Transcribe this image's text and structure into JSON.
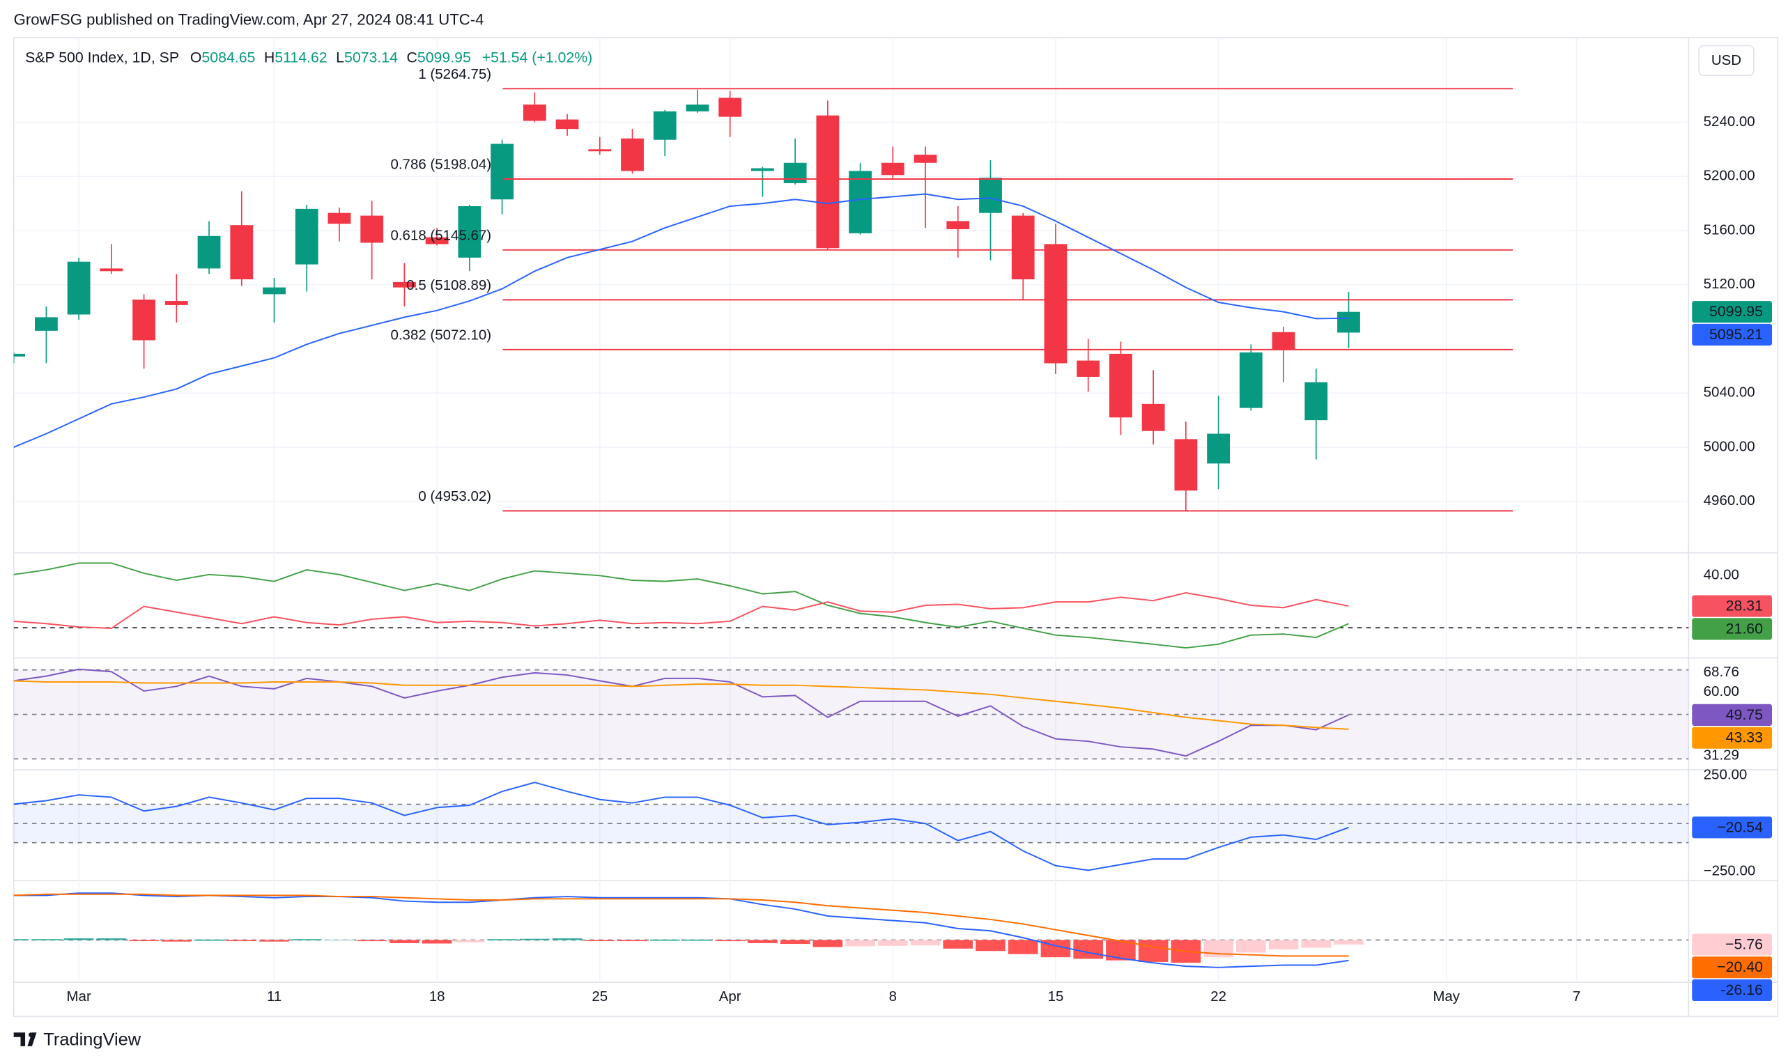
{
  "header": "GrowFSG published on TradingView.com, Apr 27, 2024 08:41 UTC-4",
  "footer": "TradingView",
  "currency": "USD",
  "chart_data": [
    {
      "type": "candlestick",
      "title": "S&P 500 Index, 1D, SP",
      "ohlc_prefixes": [
        "O",
        "H",
        "L",
        "C"
      ],
      "change": "+51.54 (+1.02%)",
      "x": [
        0,
        1,
        2,
        3,
        4,
        5,
        6,
        7,
        8,
        9,
        10,
        11,
        12,
        13,
        14,
        15,
        16,
        17,
        18,
        19,
        20,
        21,
        22,
        23,
        24,
        25,
        26,
        27,
        28,
        29,
        30,
        31,
        32,
        33,
        34,
        35,
        36,
        37,
        38,
        39,
        40,
        41
      ],
      "open": [
        5067,
        5086,
        5098,
        5132,
        5109,
        5108,
        5132,
        5164,
        5113,
        5135,
        5173,
        5171,
        5122,
        5155,
        5140,
        5183,
        5253,
        5242,
        5220,
        5228,
        5227,
        5248,
        5258,
        5204,
        5195,
        5245,
        5158,
        5210,
        5216,
        5167,
        5173,
        5171,
        5150,
        5064,
        5069,
        5032,
        5006,
        4988,
        5029,
        5085,
        5020,
        5084.65
      ],
      "high": [
        5070,
        5104,
        5140,
        5150,
        5113,
        5128,
        5167,
        5189,
        5125,
        5179,
        5177,
        5182,
        5136,
        5162,
        5179,
        5227,
        5262,
        5246,
        5229,
        5235,
        5249,
        5264,
        5263,
        5207,
        5228,
        5256,
        5210,
        5222,
        5222,
        5178,
        5212,
        5173,
        5165,
        5080,
        5078,
        5057,
        5019,
        5038,
        5076,
        5089,
        5058,
        5114.62
      ],
      "low": [
        5062,
        5062,
        5094,
        5128,
        5058,
        5092,
        5128,
        5119,
        5092,
        5115,
        5152,
        5124,
        5104,
        5149,
        5130,
        5172,
        5240,
        5230,
        5216,
        5202,
        5215,
        5247,
        5229,
        5185,
        5194,
        5146,
        5157,
        5198,
        5162,
        5140,
        5138,
        5109,
        5054,
        5041,
        5009,
        5002,
        4953,
        4969,
        5027,
        5048,
        4991,
        5073.14
      ],
      "close": [
        5069,
        5096,
        5137,
        5130,
        5079,
        5105,
        5156,
        5124,
        5118,
        5176,
        5165,
        5151,
        5118,
        5150,
        5178,
        5224,
        5241,
        5235,
        5218.5,
        5204,
        5248,
        5253,
        5244,
        5206,
        5210,
        5147,
        5204,
        5201,
        5210,
        5161,
        5199,
        5124,
        5062,
        5052,
        5022,
        5012,
        4968,
        5010,
        5070,
        5072,
        5048,
        5099.95
      ],
      "up_color": "#089981",
      "down_color": "#f23645",
      "series": [
        {
          "color": "#2962ff",
          "values": [
            5000,
            5010,
            5021,
            5032,
            5037,
            5043,
            5054,
            5060,
            5066,
            5076,
            5084,
            5090,
            5096,
            5101,
            5108,
            5117,
            5130,
            5140,
            5146,
            5152,
            5162,
            5170,
            5178,
            5180,
            5183,
            5180,
            5183,
            5185,
            5187,
            5183,
            5184,
            5178,
            5167,
            5155,
            5143,
            5131,
            5118,
            5107,
            5103,
            5100,
            5095,
            5095.21
          ]
        }
      ],
      "levels": [
        {
          "value": 5264.75,
          "label": "1 (5264.75)"
        },
        {
          "value": 5198.04,
          "label": "0.786 (5198.04)"
        },
        {
          "value": 5145.67,
          "label": "0.618 (5145.67)"
        },
        {
          "value": 5108.89,
          "label": "0.5 (5108.89)"
        },
        {
          "value": 5072.1,
          "label": "0.382 (5072.10)"
        },
        {
          "value": 4953.02,
          "label": "0 (4953.02)"
        }
      ],
      "level_color": "#f23645",
      "level_x": [
        15.02,
        46.04
      ],
      "xlim": [
        0,
        51.44
      ],
      "xticks": [
        {
          "value": 2,
          "label": "Mar"
        },
        {
          "value": 8,
          "label": "11"
        },
        {
          "value": 13,
          "label": "18"
        },
        {
          "value": 18,
          "label": "25"
        },
        {
          "value": 22,
          "label": "Apr"
        },
        {
          "value": 27,
          "label": "8"
        },
        {
          "value": 32,
          "label": "15"
        },
        {
          "value": 37,
          "label": "22"
        },
        {
          "value": 44,
          "label": "May"
        },
        {
          "value": 48,
          "label": "7"
        }
      ],
      "ylim": [
        4922.9,
        5302.4
      ],
      "yticks": [
        {
          "value": 5240,
          "label": "5240.00"
        },
        {
          "value": 5200,
          "label": "5200.00"
        },
        {
          "value": 5160,
          "label": "5160.00"
        },
        {
          "value": 5120,
          "label": "5120.00"
        },
        {
          "value": 5040,
          "label": "5040.00"
        },
        {
          "value": 5000,
          "label": "5000.00"
        },
        {
          "value": 4960,
          "label": "4960.00"
        }
      ],
      "grid": true
    },
    {
      "type": "line",
      "series": [
        {
          "color": "#43a047",
          "values": [
            40.4,
            42.2,
            44.8,
            44.8,
            40.9,
            38.2,
            40.4,
            39.6,
            37.8,
            42.2,
            40.4,
            37.4,
            34.3,
            36.9,
            34.3,
            38.7,
            41.8,
            40.9,
            40.0,
            38.2,
            37.8,
            38.7,
            36.1,
            33.0,
            33.9,
            28.6,
            25.5,
            24.2,
            22.0,
            20.2,
            22.5,
            19.8,
            17.2,
            16.3,
            15.0,
            13.7,
            12.3,
            13.7,
            17.2,
            17.6,
            16.3,
            21.6
          ],
          "last_label": "21.60"
        },
        {
          "color": "#f7525f",
          "values": [
            22.5,
            21.6,
            20.3,
            19.8,
            28.2,
            26.0,
            23.8,
            21.6,
            24.2,
            22.0,
            21.1,
            23.3,
            24.2,
            22.0,
            22.5,
            22.0,
            20.7,
            21.6,
            22.9,
            21.6,
            22.0,
            21.6,
            22.5,
            28.2,
            26.8,
            29.9,
            26.4,
            26.0,
            28.6,
            29.0,
            27.3,
            27.7,
            29.9,
            29.9,
            31.7,
            30.4,
            33.4,
            31.2,
            28.6,
            27.7,
            30.8,
            28.31
          ],
          "last_label": "28.31"
        }
      ],
      "hlines": [
        20
      ],
      "ylim": [
        8.9,
        48.3
      ],
      "yticks": [
        {
          "value": 40,
          "label": "40.00"
        }
      ]
    },
    {
      "type": "line",
      "series": [
        {
          "color": "#7e57c2",
          "values": [
            65.1,
            67.2,
            70.3,
            69.2,
            60.5,
            62.6,
            67.2,
            62.6,
            61.5,
            66.2,
            64.6,
            62.6,
            57.4,
            60.5,
            63.1,
            66.7,
            68.7,
            67.7,
            65.1,
            62.6,
            66.2,
            66.2,
            64.6,
            57.9,
            58.5,
            48.7,
            55.9,
            55.9,
            55.9,
            49.2,
            53.8,
            44.6,
            39.0,
            37.9,
            35.4,
            34.4,
            31.3,
            37.9,
            45.1,
            45.1,
            43.1,
            49.75
          ],
          "last_label": "49.75"
        },
        {
          "color": "#ff9800",
          "values": [
            65.1,
            64.6,
            64.6,
            64.6,
            64.1,
            64.1,
            64.1,
            64.1,
            64.6,
            64.6,
            64.6,
            64.1,
            63.1,
            63.1,
            63.1,
            63.1,
            63.1,
            63.1,
            63.1,
            62.6,
            63.1,
            63.6,
            63.6,
            63.1,
            63.1,
            62.6,
            62.1,
            61.5,
            61.0,
            60.0,
            59.0,
            57.4,
            55.9,
            54.4,
            52.8,
            50.8,
            48.7,
            47.2,
            45.6,
            45.1,
            44.1,
            43.33
          ],
          "last_label": "43.33"
        }
      ],
      "hlines": [
        70,
        50,
        30
      ],
      "band": [
        30,
        70
      ],
      "band_color": "#7e57c2",
      "ylim": [
        25.6,
        74.9
      ],
      "yticks": [
        68.76,
        {
          "value": 60,
          "label": "60.00"
        },
        31.29
      ]
    },
    {
      "type": "line",
      "series": [
        {
          "color": "#2962ff",
          "values": [
            101,
            119,
            149,
            137,
            65,
            89,
            137,
            107,
            71,
            131,
            131,
            107,
            42,
            83,
            95,
            167,
            214,
            167,
            125,
            107,
            137,
            137,
            95,
            30,
            42,
            -6,
            6,
            24,
            0,
            -89,
            -42,
            -143,
            -220,
            -244,
            -214,
            -185,
            -185,
            -125,
            -71,
            -60,
            -83,
            -20.54
          ],
          "last_label": "−20.54"
        }
      ],
      "hlines": [
        100,
        0,
        -100
      ],
      "band": [
        -100,
        100
      ],
      "band_color": "#2962ff",
      "ylim": [
        -291.7,
        273.8
      ],
      "yticks": [
        {
          "value": 250,
          "label": "250.00"
        },
        {
          "value": -250,
          "label": "−250.00"
        }
      ]
    },
    {
      "type": "macd",
      "histogram": {
        "values": [
          1,
          1,
          2,
          2,
          -1,
          -2,
          0.5,
          -1,
          -2,
          1,
          0.5,
          -1.5,
          -4,
          -4.5,
          -3,
          1,
          1.5,
          2,
          -1,
          -1.5,
          0.5,
          0.5,
          -1.5,
          -4,
          -5,
          -9,
          -8,
          -7.5,
          -7,
          -11,
          -14,
          -18,
          -22,
          -24,
          -26,
          -28,
          -29,
          -22,
          -16,
          -12,
          -10,
          -5.76
        ],
        "last_label": "−5.76",
        "colors": {
          "up": "#26a69a",
          "up_light": "#b2dfdb",
          "down": "#ff5252",
          "down_light": "#ffcdd2"
        }
      },
      "series": [
        {
          "color": "#2962ff",
          "values": [
            56.9,
            56.9,
            59.8,
            59.8,
            56.9,
            55.4,
            56.9,
            55.4,
            53.9,
            55.4,
            55.4,
            53.9,
            49.6,
            48.1,
            48.1,
            51.0,
            53.9,
            55.4,
            53.9,
            53.9,
            53.9,
            53.9,
            52.5,
            45.2,
            39.4,
            30.6,
            27.7,
            24.8,
            21.9,
            14.6,
            11.7,
            2.9,
            -7.3,
            -16.0,
            -23.3,
            -29.2,
            -33.5,
            -35.0,
            -33.5,
            -32.1,
            -32.1,
            -26.16
          ]
        },
        {
          "color": "#ff6d00",
          "values": [
            56.9,
            58.3,
            58.3,
            58.3,
            58.3,
            56.9,
            56.9,
            56.9,
            56.9,
            56.9,
            55.4,
            55.4,
            53.9,
            52.5,
            51.0,
            51.0,
            52.5,
            52.5,
            52.5,
            52.5,
            52.5,
            52.5,
            52.5,
            51.0,
            48.1,
            43.7,
            40.8,
            37.9,
            35.0,
            30.6,
            26.2,
            20.4,
            13.1,
            5.8,
            -1.5,
            -8.7,
            -14.6,
            -17.5,
            -18.9,
            -20.4,
            -20.4,
            -20.4
          ],
          "last_label": "−20.40"
        }
      ],
      "hlines": [
        0
      ],
      "ylim": [
        -53.9,
        74.3
      ]
    }
  ]
}
